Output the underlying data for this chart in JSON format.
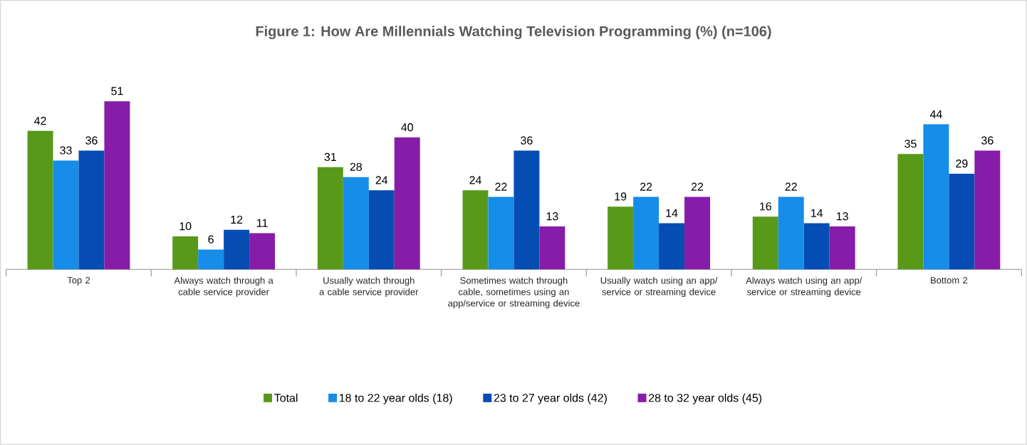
{
  "chart_data": {
    "type": "bar",
    "title": "Figure 1: How Are Millennials Watching Television Programming (%) (n=106)",
    "categories": [
      "Top 2",
      "Always watch through a cable service provider",
      "Usually watch through a cable service provider",
      "Sometimes watch through cable, sometimes using an app/service or streaming device",
      "Usually watch using an app/ service or streaming device",
      "Always watch using an app/ service or streaming device",
      "Bottom 2"
    ],
    "series": [
      {
        "name": "Total",
        "color": "#58991a",
        "values": [
          42,
          10,
          31,
          24,
          19,
          16,
          35
        ]
      },
      {
        "name": "18 to 22 year olds (18)",
        "color": "#168de8",
        "values": [
          33,
          6,
          28,
          22,
          22,
          22,
          44
        ]
      },
      {
        "name": "23 to 27 year olds (42)",
        "color": "#064db3",
        "values": [
          36,
          12,
          24,
          36,
          14,
          14,
          29
        ]
      },
      {
        "name": "28 to 32 year olds (45)",
        "color": "#861ca8",
        "values": [
          51,
          11,
          40,
          13,
          22,
          13,
          36
        ]
      }
    ],
    "data_labels": true,
    "legend": "bottom"
  }
}
